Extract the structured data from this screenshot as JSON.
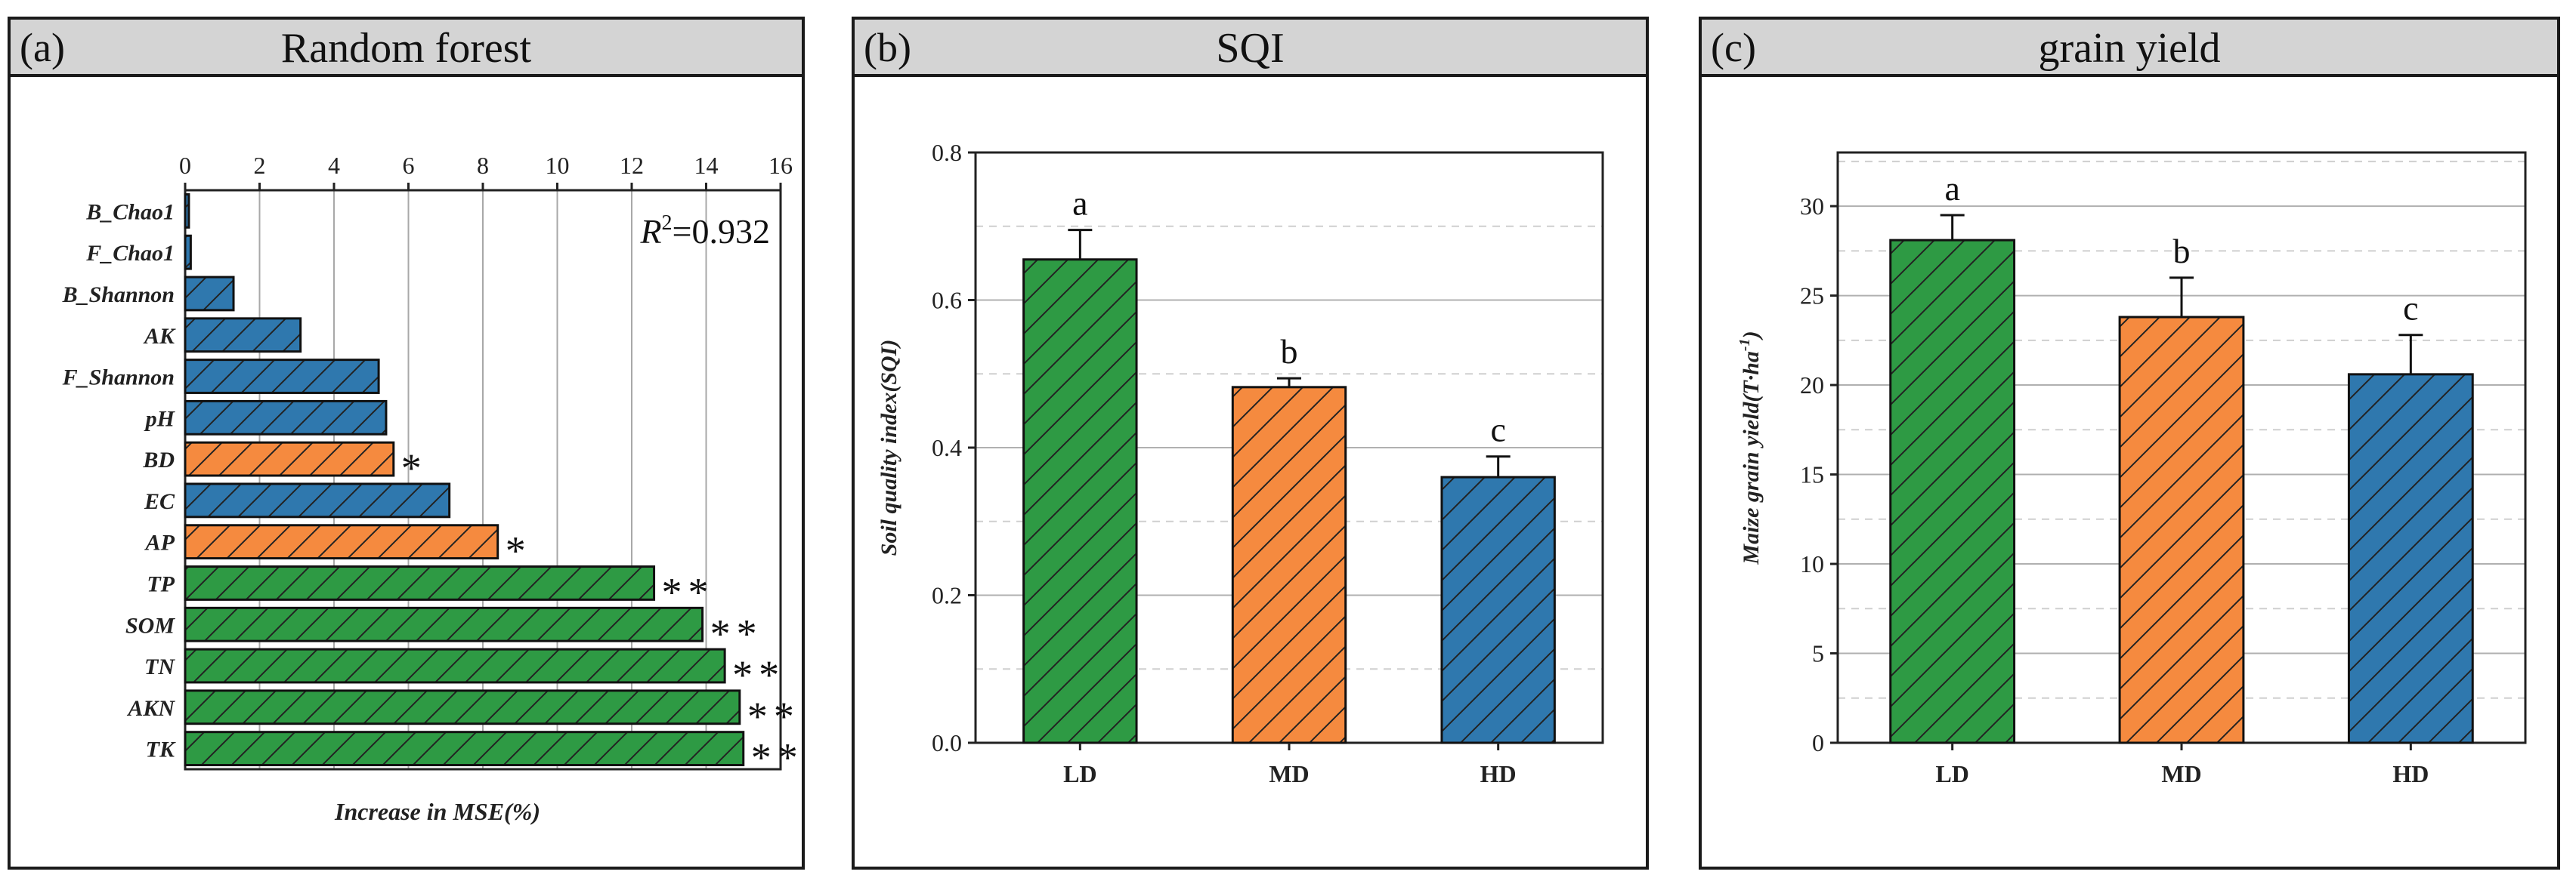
{
  "colors": {
    "green": "#2e9a44",
    "orange": "#f58a3f",
    "blue": "#2f78ae",
    "header_bg": "#d4d4d4",
    "frame": "#1a1a1a"
  },
  "chart_data": [
    {
      "panel_letter": "(a)",
      "title": "Random forest",
      "type": "bar",
      "orientation": "horizontal",
      "categories": [
        "B_Chao1",
        "F_Chao1",
        "B_Shannon",
        "AK",
        "F_Shannon",
        "pH",
        "BD",
        "EC",
        "AP",
        "TP",
        "SOM",
        "TN",
        "AKN",
        "TK"
      ],
      "values": [
        0.1,
        0.15,
        1.3,
        3.1,
        5.2,
        5.4,
        5.6,
        7.1,
        8.4,
        12.6,
        13.9,
        14.5,
        14.9,
        15.0
      ],
      "colors": [
        "blue",
        "blue",
        "blue",
        "blue",
        "blue",
        "blue",
        "orange",
        "blue",
        "orange",
        "green",
        "green",
        "green",
        "green",
        "green"
      ],
      "significance": [
        "",
        "",
        "",
        "",
        "",
        "",
        "*",
        "",
        "*",
        "**",
        "**",
        "**",
        "**",
        "**"
      ],
      "xlabel": "Increase in MSE(%)",
      "xlim": [
        0,
        16
      ],
      "xticks": [
        0,
        2,
        4,
        6,
        8,
        10,
        12,
        14,
        16
      ],
      "xtick_labels": [
        "0",
        "2",
        "4",
        "6",
        "8",
        "10",
        "12",
        "14",
        "16"
      ],
      "annotation": {
        "r2_label": "R",
        "r2_sup": "2",
        "r2_value": "=0.932"
      },
      "grid": true
    },
    {
      "panel_letter": "(b)",
      "title": "SQI",
      "type": "bar",
      "categories": [
        "LD",
        "MD",
        "HD"
      ],
      "values": [
        0.655,
        0.482,
        0.36
      ],
      "errors": [
        0.04,
        0.012,
        0.028
      ],
      "colors": [
        "green",
        "orange",
        "blue"
      ],
      "letters": [
        "a",
        "b",
        "c"
      ],
      "ylabel": "Soil quality index(SQI)",
      "ylim": [
        0,
        0.8
      ],
      "yticks": [
        0,
        0.2,
        0.4,
        0.6,
        0.8
      ],
      "ytick_labels": [
        "0.0",
        "0.2",
        "0.4",
        "0.6",
        "0.8"
      ],
      "grid": true
    },
    {
      "panel_letter": "(c)",
      "title": "grain yield",
      "type": "bar",
      "categories": [
        "LD",
        "MD",
        "HD"
      ],
      "values": [
        28.1,
        23.8,
        20.6
      ],
      "errors": [
        1.4,
        2.2,
        2.2
      ],
      "colors": [
        "green",
        "orange",
        "blue"
      ],
      "letters": [
        "a",
        "b",
        "c"
      ],
      "ylabel": "Maize grain yield(T·ha",
      "ylabel_sup": "-1",
      "ylabel_end": ")",
      "ylim": [
        0,
        33
      ],
      "yticks": [
        0,
        5,
        10,
        15,
        20,
        25,
        30
      ],
      "ytick_labels": [
        "0",
        "5",
        "10",
        "15",
        "20",
        "25",
        "30"
      ],
      "grid": true
    }
  ]
}
